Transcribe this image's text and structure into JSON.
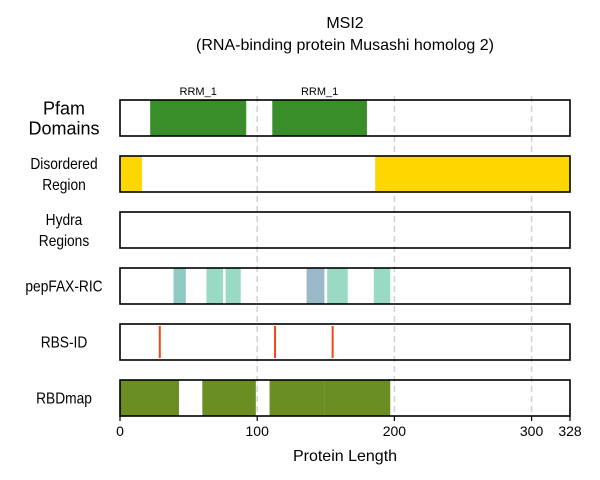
{
  "chart_data": {
    "type": "bar",
    "title": "MSI2",
    "subtitle": "(RNA-binding protein Musashi homolog 2)",
    "xlabel": "Protein Length",
    "xlim": [
      0,
      328
    ],
    "xticks": [
      0,
      100,
      200,
      300,
      328
    ],
    "grid_x": [
      100,
      200,
      300
    ],
    "grid": "vertical dashed",
    "tracks": [
      {
        "label": "Pfam\nDomains",
        "segments": [
          {
            "start": 22,
            "end": 92,
            "color": "#3a8e2a",
            "label": "RRM_1"
          },
          {
            "start": 111,
            "end": 180,
            "color": "#3a8e2a",
            "label": "RRM_1"
          }
        ]
      },
      {
        "label": "Disordered\nRegion",
        "segments": [
          {
            "start": 0,
            "end": 16,
            "color": "#ffd700"
          },
          {
            "start": 186,
            "end": 328,
            "color": "#ffd700"
          }
        ]
      },
      {
        "label": "Hydra\nRegions",
        "segments": []
      },
      {
        "label": "pepFAX-RIC",
        "segments": [
          {
            "start": 39,
            "end": 48,
            "color": "#8fcac4"
          },
          {
            "start": 63,
            "end": 75,
            "color": "#98dac3"
          },
          {
            "start": 77,
            "end": 88,
            "color": "#98dac3"
          },
          {
            "start": 136,
            "end": 149,
            "color": "#9ab8c7"
          },
          {
            "start": 151,
            "end": 166,
            "color": "#98dac3"
          },
          {
            "start": 185,
            "end": 197,
            "color": "#98dac3"
          }
        ]
      },
      {
        "label": "RBS-ID",
        "sites": [
          29,
          113,
          155
        ],
        "site_color": "#f04a10"
      },
      {
        "label": "RBDmap",
        "segments": [
          {
            "start": 0,
            "end": 43,
            "color": "#6b8e23"
          },
          {
            "start": 60,
            "end": 99,
            "color": "#6b8e23"
          },
          {
            "start": 109,
            "end": 149,
            "color": "#6b8e23"
          },
          {
            "start": 149,
            "end": 197,
            "color": "#6b8e23"
          }
        ]
      }
    ]
  }
}
